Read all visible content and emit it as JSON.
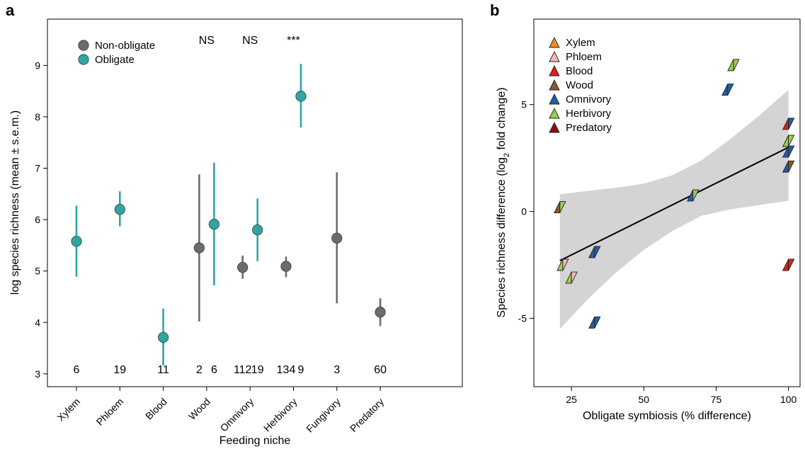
{
  "chart_data": [
    {
      "panel": "a",
      "type": "scatter",
      "xlabel": "Feeding niche",
      "ylabel": "log species richness (mean ± s.e.m.)",
      "ylim": [
        2.75,
        9.9
      ],
      "yticks": [
        3,
        4,
        5,
        6,
        7,
        8,
        9
      ],
      "categories": [
        "Xylem",
        "Phloem",
        "Blood",
        "Wood",
        "Omnivory",
        "Herbivory",
        "Fungivory",
        "Predatory"
      ],
      "legend_position": "top-left",
      "series": [
        {
          "name": "Non-obligate",
          "color": "#6b6b6b",
          "points": [
            {
              "category": "Wood",
              "mean": 5.45,
              "low": 4.02,
              "high": 6.88,
              "n": "2"
            },
            {
              "category": "Omnivory",
              "mean": 5.07,
              "low": 4.85,
              "high": 5.3,
              "n": "112"
            },
            {
              "category": "Herbivory",
              "mean": 5.09,
              "low": 4.88,
              "high": 5.28,
              "n": "134"
            },
            {
              "category": "Fungivory",
              "mean": 5.64,
              "low": 4.37,
              "high": 6.92,
              "n": "3"
            },
            {
              "category": "Predatory",
              "mean": 4.2,
              "low": 3.93,
              "high": 4.47,
              "n": "60"
            }
          ]
        },
        {
          "name": "Obligate",
          "color": "#2ea6a4",
          "points": [
            {
              "category": "Xylem",
              "mean": 5.58,
              "low": 4.89,
              "high": 6.27,
              "n": "6"
            },
            {
              "category": "Phloem",
              "mean": 6.2,
              "low": 5.87,
              "high": 6.55,
              "n": "19"
            },
            {
              "category": "Blood",
              "mean": 3.71,
              "low": 3.16,
              "high": 4.27,
              "n": "11"
            },
            {
              "category": "Wood",
              "mean": 5.91,
              "low": 4.72,
              "high": 7.11,
              "n": "6"
            },
            {
              "category": "Omnivory",
              "mean": 5.8,
              "low": 5.19,
              "high": 6.41,
              "n": "19"
            },
            {
              "category": "Herbivory",
              "mean": 8.4,
              "low": 7.79,
              "high": 9.03,
              "n": "9"
            }
          ]
        }
      ],
      "significance": [
        {
          "category": "Wood",
          "label": "NS"
        },
        {
          "category": "Omnivory",
          "label": "NS"
        },
        {
          "category": "Herbivory",
          "label": "***"
        }
      ]
    },
    {
      "panel": "b",
      "type": "scatter",
      "xlabel": "Obligate symbiosis (% difference)",
      "ylabel_main": "Species richness difference (log",
      "ylabel_sub": "2",
      "ylabel_end": " fold change)",
      "xlim": [
        12,
        104
      ],
      "ylim": [
        -8.2,
        9.0
      ],
      "xticks": [
        25,
        50,
        75,
        100
      ],
      "yticks": [
        -5,
        0,
        5
      ],
      "legend_position": "top-left",
      "legend": [
        {
          "name": "Xylem",
          "left_color": "#f28c1f",
          "right_color": "#f28c1f"
        },
        {
          "name": "Phloem",
          "left_color": "#f4b8b8",
          "right_color": "#f4b8b8"
        },
        {
          "name": "Blood",
          "left_color": "#e41a1c",
          "right_color": "#e41a1c"
        },
        {
          "name": "Wood",
          "left_color": "#8b5a2b",
          "right_color": "#8b5a2b"
        },
        {
          "name": "Omnivory",
          "left_color": "#1f5fa8",
          "right_color": "#1f5fa8"
        },
        {
          "name": "Herbivory",
          "left_color": "#9acd4f",
          "right_color": "#9acd4f"
        },
        {
          "name": "Predatory",
          "left_color": "#8b1010",
          "right_color": "#8b1010"
        }
      ],
      "points": [
        {
          "x": 21,
          "y": 0.2,
          "left_color": "#8b5a2b",
          "right_color": "#9acd4f"
        },
        {
          "x": 22,
          "y": -2.5,
          "left_color": "#9acd4f",
          "right_color": "#f4b8b8"
        },
        {
          "x": 25,
          "y": -3.1,
          "left_color": "#9acd4f",
          "right_color": "#f4b8b8"
        },
        {
          "x": 33,
          "y": -1.9,
          "left_color": "#1f5fa8",
          "right_color": "#1f5fa8"
        },
        {
          "x": 33,
          "y": -5.2,
          "left_color": "#1f5fa8",
          "right_color": "#1f5fa8"
        },
        {
          "x": 67,
          "y": 0.75,
          "left_color": "#1f5fa8",
          "right_color": "#9acd4f"
        },
        {
          "x": 79,
          "y": 5.7,
          "left_color": "#1f5fa8",
          "right_color": "#1f5fa8"
        },
        {
          "x": 81,
          "y": 6.85,
          "left_color": "#9acd4f",
          "right_color": "#9acd4f"
        },
        {
          "x": 100,
          "y": 4.1,
          "left_color": "#e41a1c",
          "right_color": "#1f5fa8"
        },
        {
          "x": 100,
          "y": 3.3,
          "left_color": "#9acd4f",
          "right_color": "#9acd4f"
        },
        {
          "x": 100,
          "y": 2.8,
          "left_color": "#1f5fa8",
          "right_color": "#1f5fa8"
        },
        {
          "x": 100,
          "y": 2.1,
          "left_color": "#1f5fa8",
          "right_color": "#8b5a2b"
        },
        {
          "x": 100,
          "y": -2.5,
          "left_color": "#e41a1c",
          "right_color": "#e41a1c"
        }
      ],
      "regression": {
        "x": [
          21,
          100
        ],
        "y": [
          -2.3,
          3.0
        ]
      },
      "confidence_band": {
        "x": [
          21,
          30,
          40,
          50,
          60,
          70,
          80,
          90,
          100
        ],
        "lower": [
          -5.5,
          -4.2,
          -2.9,
          -1.8,
          -0.9,
          -0.2,
          0.1,
          0.3,
          0.5
        ],
        "upper": [
          0.8,
          0.95,
          1.1,
          1.3,
          1.7,
          2.4,
          3.4,
          4.5,
          5.7
        ]
      }
    }
  ]
}
